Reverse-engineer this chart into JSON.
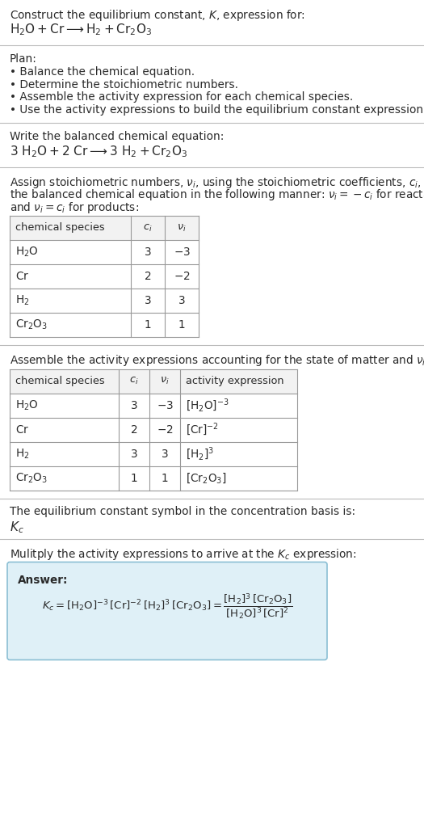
{
  "bg_color": "#ffffff",
  "text_color": "#2a2a2a",
  "title_line1": "Construct the equilibrium constant, $K$, expression for:",
  "title_line2": "$\\mathrm{H_2O + Cr \\longrightarrow H_2 + Cr_2O_3}$",
  "plan_header": "Plan:",
  "plan_bullets": [
    "Balance the chemical equation.",
    "Determine the stoichiometric numbers.",
    "Assemble the activity expression for each chemical species.",
    "Use the activity expressions to build the equilibrium constant expression."
  ],
  "balanced_header": "Write the balanced chemical equation:",
  "balanced_eq": "$\\mathrm{3\\ H_2O + 2\\ Cr \\longrightarrow 3\\ H_2 + Cr_2O_3}$",
  "stoich_intro": [
    "Assign stoichiometric numbers, $\\nu_i$, using the stoichiometric coefficients, $c_i$, from",
    "the balanced chemical equation in the following manner: $\\nu_i = -c_i$ for reactants",
    "and $\\nu_i = c_i$ for products:"
  ],
  "table1_cols": [
    "chemical species",
    "$c_i$",
    "$\\nu_i$"
  ],
  "table1_rows": [
    [
      "$\\mathrm{H_2O}$",
      "3",
      "$-3$"
    ],
    [
      "$\\mathrm{Cr}$",
      "2",
      "$-2$"
    ],
    [
      "$\\mathrm{H_2}$",
      "3",
      "3"
    ],
    [
      "$\\mathrm{Cr_2O_3}$",
      "1",
      "1"
    ]
  ],
  "activity_header": "Assemble the activity expressions accounting for the state of matter and $\\nu_i$:",
  "table2_cols": [
    "chemical species",
    "$c_i$",
    "$\\nu_i$",
    "activity expression"
  ],
  "table2_rows": [
    [
      "$\\mathrm{H_2O}$",
      "3",
      "$-3$",
      "$[\\mathrm{H_2O}]^{-3}$"
    ],
    [
      "$\\mathrm{Cr}$",
      "2",
      "$-2$",
      "$[\\mathrm{Cr}]^{-2}$"
    ],
    [
      "$\\mathrm{H_2}$",
      "3",
      "3",
      "$[\\mathrm{H_2}]^3$"
    ],
    [
      "$\\mathrm{Cr_2O_3}$",
      "1",
      "1",
      "$[\\mathrm{Cr_2O_3}]$"
    ]
  ],
  "kc_header": "The equilibrium constant symbol in the concentration basis is:",
  "kc_symbol": "$K_c$",
  "multiply_header": "Mulitply the activity expressions to arrive at the $K_c$ expression:",
  "answer_box_color": "#dff0f7",
  "answer_box_border": "#8bbfd4",
  "answer_label": "Answer:",
  "sep_color": "#bbbbbb",
  "table_border": "#999999",
  "table_header_bg": "#f2f2f2"
}
